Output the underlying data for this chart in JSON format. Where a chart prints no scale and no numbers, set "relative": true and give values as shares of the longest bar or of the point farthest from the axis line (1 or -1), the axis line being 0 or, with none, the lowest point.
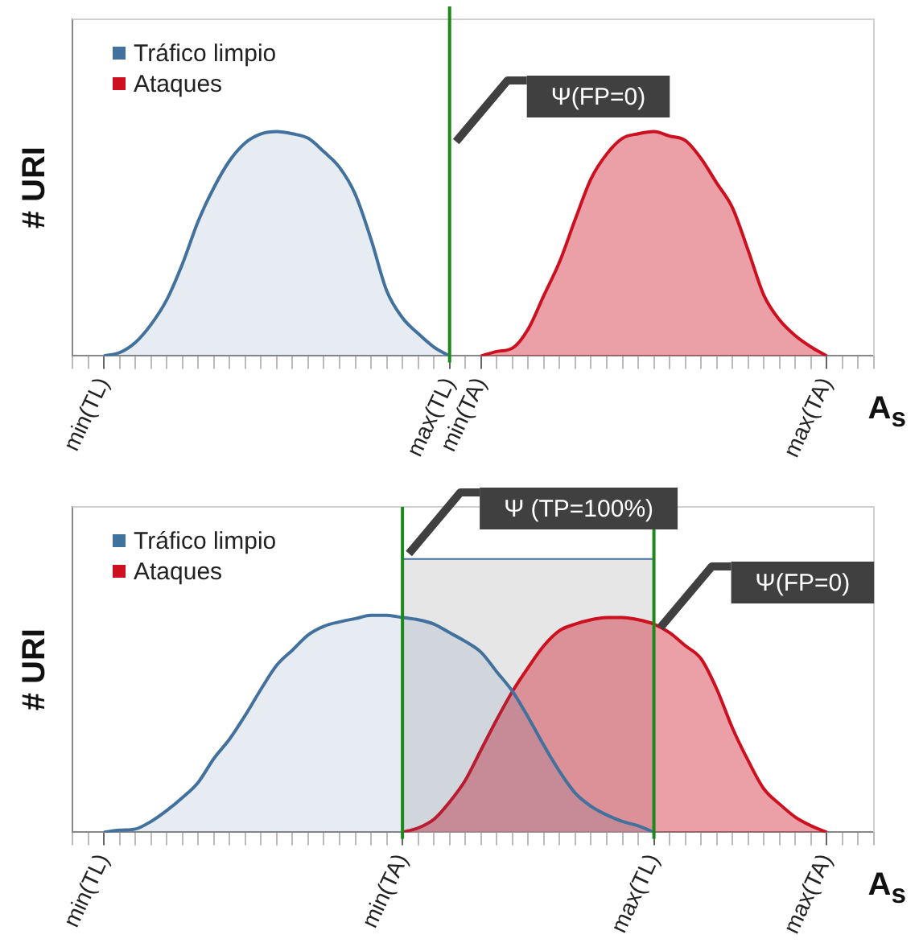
{
  "chart_data": [
    {
      "type": "area",
      "relative": true,
      "ylabel": "# URI",
      "xlabel": "A$_{s}$",
      "tick_labels": "x",
      "legend": "top left",
      "marker": "none",
      "categories": [
        null,
        null,
        "min(TL)",
        null,
        null,
        null,
        null,
        null,
        null,
        null,
        null,
        null,
        null,
        null,
        null,
        null,
        null,
        null,
        null,
        null,
        null,
        null,
        null,
        null,
        "max(TL)",
        null,
        "min(TA)",
        null,
        null,
        null,
        null,
        null,
        null,
        null,
        null,
        null,
        null,
        null,
        null,
        null,
        null,
        null,
        null,
        null,
        null,
        null,
        null,
        null,
        "max(TA)",
        null,
        null,
        null
      ],
      "series": [
        {
          "name": "Tráfico limpio",
          "color": "#41719c",
          "values": [
            null,
            null,
            0,
            0.015,
            0.06,
            0.14,
            0.25,
            0.41,
            0.6,
            0.75,
            0.87,
            0.95,
            0.99,
            1,
            0.99,
            0.97,
            0.91,
            0.84,
            0.72,
            0.52,
            0.29,
            0.17,
            0.1,
            0.04,
            0,
            null,
            null,
            null,
            null,
            null,
            null,
            null,
            null,
            null,
            null,
            null,
            null,
            null,
            null,
            null,
            null,
            null,
            null,
            null,
            null,
            null,
            null,
            null,
            null,
            null,
            null,
            null
          ]
        },
        {
          "name": "Ataques",
          "color": "#cc1020",
          "values": [
            null,
            null,
            null,
            null,
            null,
            null,
            null,
            null,
            null,
            null,
            null,
            null,
            null,
            null,
            null,
            null,
            null,
            null,
            null,
            null,
            null,
            null,
            null,
            null,
            null,
            null,
            0,
            0.02,
            0.035,
            0.12,
            0.27,
            0.42,
            0.61,
            0.79,
            0.9,
            0.97,
            0.99,
            1,
            0.98,
            0.96,
            0.88,
            0.77,
            0.66,
            0.47,
            0.27,
            0.16,
            0.09,
            0.04,
            0,
            null,
            null,
            null
          ]
        }
      ],
      "ref_lines": [
        {
          "axis": "x",
          "value": "max(TL)",
          "label": "Ψ(FP=0)",
          "color": "#1b8a1b"
        }
      ]
    },
    {
      "type": "area",
      "relative": true,
      "ylabel": "# URI",
      "xlabel": "A$_{s}$",
      "tick_labels": "x",
      "legend": "top left",
      "marker": "none",
      "categories": [
        null,
        null,
        "min(TL)",
        null,
        null,
        null,
        null,
        null,
        null,
        null,
        null,
        null,
        null,
        null,
        null,
        null,
        null,
        null,
        null,
        null,
        null,
        "min(TA)",
        null,
        null,
        null,
        null,
        null,
        null,
        null,
        null,
        null,
        null,
        null,
        null,
        null,
        null,
        null,
        "max(TL)",
        null,
        null,
        null,
        null,
        null,
        null,
        null,
        null,
        null,
        null,
        "max(TA)",
        null,
        null,
        null
      ],
      "series": [
        {
          "name": "Tráfico limpio",
          "color": "#41719c",
          "values": [
            null,
            null,
            0,
            0.01,
            0.015,
            0.05,
            0.1,
            0.16,
            0.23,
            0.34,
            0.43,
            0.54,
            0.66,
            0.77,
            0.84,
            0.91,
            0.95,
            0.97,
            0.985,
            1,
            1,
            0.99,
            0.98,
            0.96,
            0.92,
            0.88,
            0.83,
            0.74,
            0.65,
            0.53,
            0.4,
            0.28,
            0.18,
            0.12,
            0.08,
            0.05,
            0.03,
            0,
            null,
            null,
            null,
            null,
            null,
            null,
            null,
            null,
            null,
            null,
            null,
            null,
            null,
            null
          ]
        },
        {
          "name": "Ataques",
          "color": "#cc1020",
          "values": [
            null,
            null,
            null,
            null,
            null,
            null,
            null,
            null,
            null,
            null,
            null,
            null,
            null,
            null,
            null,
            null,
            null,
            null,
            null,
            null,
            null,
            0,
            0.02,
            0.06,
            0.14,
            0.24,
            0.38,
            0.52,
            0.65,
            0.76,
            0.86,
            0.93,
            0.96,
            0.98,
            0.99,
            0.99,
            0.98,
            0.96,
            0.92,
            0.86,
            0.8,
            0.66,
            0.48,
            0.33,
            0.2,
            0.13,
            0.07,
            0.03,
            0,
            null,
            null,
            null
          ]
        }
      ],
      "bands": [
        {
          "axis": "x",
          "from": "min(TA)",
          "to": "max(TL)",
          "label": "Ψ (TP=100%)",
          "color": "#d9d9d9"
        }
      ],
      "ref_lines": [
        {
          "axis": "x",
          "value": "min(TA)",
          "color": "#1b8a1b"
        },
        {
          "axis": "x",
          "value": "max(TL)",
          "label": "Ψ(FP=0)",
          "color": "#1b8a1b"
        }
      ]
    }
  ]
}
